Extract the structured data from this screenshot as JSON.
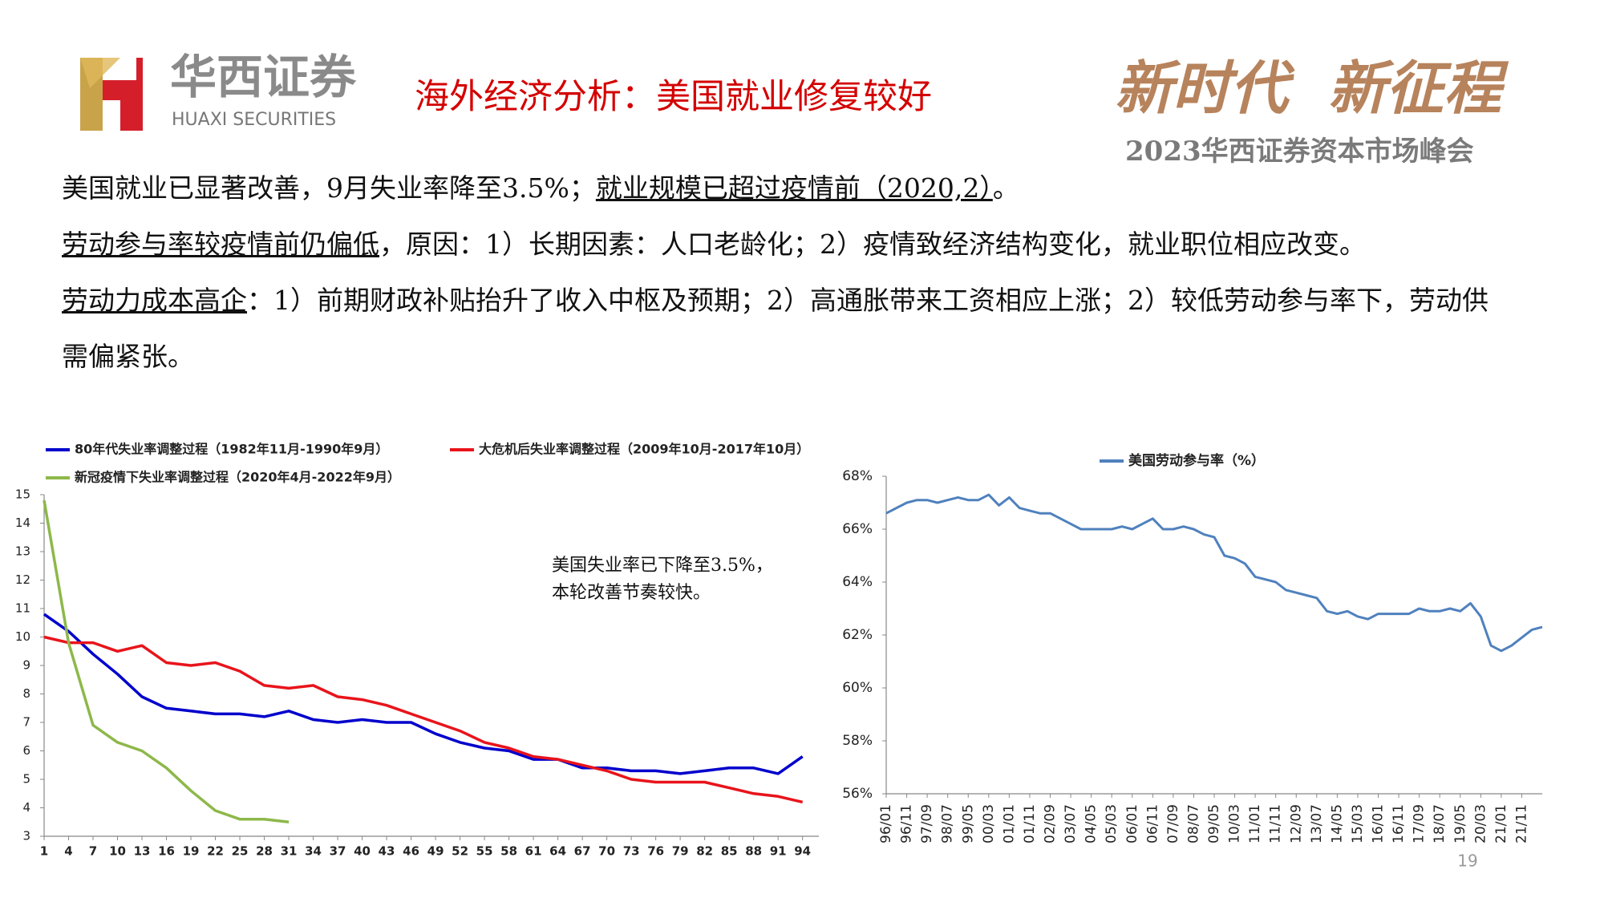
{
  "header": {
    "brand": "华西证券",
    "brand_en": "HUAXI SECURITIES",
    "title": "海外经济分析：美国就业修复较好",
    "slogan": "新时代  新征程",
    "event": "2023华西证券资本市场峰会"
  },
  "paragraphs": [
    [
      {
        "text": "美国就业已显著改善，9月失业率降至3.5%；"
      },
      {
        "text": "就业规模已超过疫情前（2020,2）",
        "underline": true
      },
      {
        "text": "。"
      }
    ],
    [
      {
        "text": "劳动参与率较疫情前仍偏低",
        "underline": true
      },
      {
        "text": "，原因：1）长期因素：人口老龄化；2）疫情致经济结构变化，就业职位相应改变。"
      }
    ],
    [
      {
        "text": "劳动力成本高企",
        "underline": true
      },
      {
        "text": "：1）前期财政补贴抬升了收入中枢及预期；2）高通胀带来工资相应上涨；2）较低劳动参与率下，劳动供需偏紧张。"
      }
    ]
  ],
  "page_number": "19",
  "chart_data": [
    {
      "type": "line",
      "legend": "top",
      "annotation": [
        "美国失业率已下降至3.5%，",
        "本轮改善节奏较快。"
      ],
      "x": [
        1,
        4,
        7,
        10,
        13,
        16,
        19,
        22,
        25,
        28,
        31,
        34,
        37,
        40,
        43,
        46,
        49,
        52,
        55,
        58,
        61,
        64,
        67,
        70,
        73,
        76,
        79,
        82,
        85,
        88,
        91,
        94
      ],
      "xlim": [
        1,
        96
      ],
      "xticks": [
        1,
        4,
        7,
        10,
        13,
        16,
        19,
        22,
        25,
        28,
        31,
        34,
        37,
        40,
        43,
        46,
        49,
        52,
        55,
        58,
        61,
        64,
        67,
        70,
        73,
        76,
        79,
        82,
        85,
        88,
        91,
        94
      ],
      "ylim": [
        3,
        15
      ],
      "yticks": [
        3,
        4,
        5,
        6,
        7,
        8,
        9,
        10,
        11,
        12,
        13,
        14,
        15
      ],
      "series": [
        {
          "name": "80年代失业率调整过程（1982年11月-1990年9月）",
          "color": "#0000cc",
          "values": [
            10.8,
            10.2,
            9.4,
            8.7,
            7.9,
            7.5,
            7.4,
            7.3,
            7.3,
            7.2,
            7.4,
            7.1,
            7.0,
            7.1,
            7.0,
            7.0,
            6.6,
            6.3,
            6.1,
            6.0,
            5.7,
            5.7,
            5.4,
            5.4,
            5.3,
            5.3,
            5.2,
            5.3,
            5.4,
            5.4,
            5.2,
            5.8
          ]
        },
        {
          "name": "大危机后失业率调整过程（2009年10月-2017年10月）",
          "color": "#e8141b",
          "values": [
            10.0,
            9.8,
            9.8,
            9.5,
            9.7,
            9.1,
            9.0,
            9.1,
            8.8,
            8.3,
            8.2,
            8.3,
            7.9,
            7.8,
            7.6,
            7.3,
            7.0,
            6.7,
            6.3,
            6.1,
            5.8,
            5.7,
            5.5,
            5.3,
            5.0,
            4.9,
            4.9,
            4.9,
            4.7,
            4.5,
            4.4,
            4.2
          ]
        },
        {
          "name": "新冠疫情下失业率调整过程（2020年4月-2022年9月）",
          "color": "#8db84a",
          "values": [
            14.8,
            9.8,
            6.9,
            6.3,
            6.0,
            5.4,
            4.6,
            3.9,
            3.6,
            3.6,
            3.5,
            null,
            null,
            null,
            null,
            null,
            null,
            null,
            null,
            null,
            null,
            null,
            null,
            null,
            null,
            null,
            null,
            null,
            null,
            null,
            null,
            null
          ]
        }
      ]
    },
    {
      "type": "line",
      "legend": "top",
      "categories": [
        "96/01",
        null,
        "96/11",
        null,
        "97/09",
        null,
        "98/07",
        null,
        "99/05",
        null,
        "00/03",
        null,
        "01/01",
        null,
        "01/11",
        null,
        "02/09",
        null,
        "03/07",
        null,
        "04/05",
        null,
        "05/03",
        null,
        "06/01",
        null,
        "06/11",
        null,
        "07/09",
        null,
        "08/07",
        null,
        "09/05",
        null,
        "10/03",
        null,
        "11/01",
        null,
        "11/11",
        null,
        "12/09",
        null,
        "13/07",
        null,
        "14/05",
        null,
        "15/03",
        null,
        "16/01",
        null,
        "16/11",
        null,
        "17/09",
        null,
        "18/07",
        null,
        "19/05",
        null,
        "20/03",
        null,
        "21/01",
        null,
        "21/11",
        null,
        null
      ],
      "ylim": [
        56,
        68
      ],
      "yticks": [
        {
          "value": 56,
          "label": "56%"
        },
        {
          "value": 58,
          "label": "58%"
        },
        {
          "value": 60,
          "label": "60%"
        },
        {
          "value": 62,
          "label": "62%"
        },
        {
          "value": 64,
          "label": "64%"
        },
        {
          "value": 66,
          "label": "66%"
        },
        {
          "value": 68,
          "label": "68%"
        }
      ],
      "series": [
        {
          "name": "美国劳动参与率（%）",
          "color": "#4f81bd",
          "values": [
            66.6,
            66.8,
            67.0,
            67.1,
            67.1,
            67.0,
            67.1,
            67.2,
            67.1,
            67.1,
            67.3,
            66.9,
            67.2,
            66.8,
            66.7,
            66.6,
            66.6,
            66.4,
            66.2,
            66.0,
            66.0,
            66.0,
            66.0,
            66.1,
            66.0,
            66.2,
            66.4,
            66.0,
            66.0,
            66.1,
            66.0,
            65.8,
            65.7,
            65.0,
            64.9,
            64.7,
            64.2,
            64.1,
            64.0,
            63.7,
            63.6,
            63.5,
            63.4,
            62.9,
            62.8,
            62.9,
            62.7,
            62.6,
            62.8,
            62.8,
            62.8,
            62.8,
            63.0,
            62.9,
            62.9,
            63.0,
            62.9,
            63.2,
            62.7,
            61.6,
            61.4,
            61.6,
            61.9,
            62.2,
            62.3
          ]
        }
      ]
    }
  ]
}
